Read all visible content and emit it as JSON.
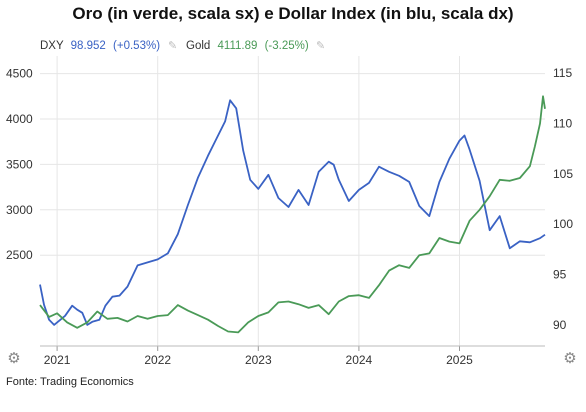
{
  "title": "Oro (in verde, scala sx) e Dollar Index (in blu, scala dx)",
  "source": "Fonte: Trading Economics",
  "icons": {
    "settings_left": "gear-icon",
    "settings_right": "gear-icon",
    "legend_edit": "pencil-icon"
  },
  "chart_data": {
    "type": "line",
    "title": "Oro (in verde, scala sx) e Dollar Index (in blu, scala dx)",
    "x_tick_labels": [
      "2021",
      "2022",
      "2023",
      "2024",
      "2025"
    ],
    "x_tick_values": [
      2021.0,
      2022.0,
      2023.0,
      2024.0,
      2025.0
    ],
    "xlim": [
      2020.83,
      2025.85
    ],
    "left_axis": {
      "ticks": [
        2500,
        3000,
        3500,
        4000,
        4500
      ],
      "range": [
        1500,
        4650
      ]
    },
    "right_axis": {
      "ticks": [
        90,
        95,
        100,
        105,
        110,
        115
      ],
      "range": [
        87.9,
        116.3
      ]
    },
    "grid": true,
    "legend_position": "top-left",
    "series": [
      {
        "name": "DXY",
        "legend_value": "98.952",
        "legend_change": "(+0.53%)",
        "axis": "right",
        "color": "#3a62c4",
        "x": [
          2020.83,
          2020.87,
          2020.92,
          2020.97,
          2021.02,
          2021.08,
          2021.15,
          2021.2,
          2021.25,
          2021.3,
          2021.35,
          2021.42,
          2021.48,
          2021.55,
          2021.62,
          2021.7,
          2021.8,
          2021.9,
          2022.0,
          2022.1,
          2022.2,
          2022.3,
          2022.4,
          2022.5,
          2022.58,
          2022.67,
          2022.72,
          2022.78,
          2022.85,
          2022.92,
          2023.0,
          2023.1,
          2023.2,
          2023.3,
          2023.4,
          2023.5,
          2023.6,
          2023.7,
          2023.75,
          2023.8,
          2023.9,
          2024.0,
          2024.1,
          2024.2,
          2024.3,
          2024.4,
          2024.5,
          2024.6,
          2024.7,
          2024.8,
          2024.9,
          2025.0,
          2025.05,
          2025.1,
          2025.2,
          2025.3,
          2025.4,
          2025.5,
          2025.6,
          2025.7,
          2025.8,
          2025.85
        ],
        "values": [
          94.0,
          92.0,
          90.5,
          90.0,
          90.4,
          90.9,
          91.9,
          91.5,
          91.2,
          90.0,
          90.3,
          90.5,
          91.9,
          92.8,
          92.9,
          93.8,
          95.9,
          96.2,
          96.5,
          97.1,
          99.0,
          101.9,
          104.6,
          106.8,
          108.4,
          110.2,
          112.3,
          111.5,
          107.3,
          104.4,
          103.5,
          104.9,
          102.6,
          101.7,
          103.4,
          101.9,
          105.2,
          106.2,
          105.9,
          104.4,
          102.3,
          103.4,
          104.1,
          105.7,
          105.2,
          104.8,
          104.2,
          101.8,
          100.8,
          104.2,
          106.5,
          108.3,
          108.8,
          107.4,
          104.3,
          99.4,
          100.8,
          97.6,
          98.3,
          98.2,
          98.6,
          98.95
        ]
      },
      {
        "name": "Gold",
        "legend_value": "4111.89",
        "legend_change": "(-3.25%)",
        "axis": "left",
        "color": "#4a9a57",
        "x": [
          2020.83,
          2020.92,
          2021.0,
          2021.1,
          2021.2,
          2021.3,
          2021.4,
          2021.5,
          2021.6,
          2021.7,
          2021.8,
          2021.9,
          2022.0,
          2022.1,
          2022.2,
          2022.3,
          2022.4,
          2022.5,
          2022.6,
          2022.7,
          2022.8,
          2022.9,
          2023.0,
          2023.1,
          2023.2,
          2023.3,
          2023.4,
          2023.5,
          2023.6,
          2023.7,
          2023.8,
          2023.9,
          2024.0,
          2024.1,
          2024.2,
          2024.3,
          2024.4,
          2024.5,
          2024.6,
          2024.7,
          2024.8,
          2024.9,
          2025.0,
          2025.1,
          2025.2,
          2025.3,
          2025.4,
          2025.5,
          2025.6,
          2025.7,
          2025.75,
          2025.8,
          2025.83,
          2025.85
        ],
        "values": [
          1950,
          1820,
          1860,
          1760,
          1700,
          1760,
          1880,
          1800,
          1810,
          1770,
          1830,
          1800,
          1830,
          1840,
          1950,
          1890,
          1840,
          1790,
          1720,
          1660,
          1650,
          1760,
          1830,
          1870,
          1980,
          1990,
          1960,
          1920,
          1950,
          1850,
          1990,
          2050,
          2060,
          2030,
          2170,
          2330,
          2390,
          2360,
          2500,
          2520,
          2690,
          2650,
          2630,
          2880,
          3000,
          3150,
          3330,
          3320,
          3350,
          3480,
          3700,
          3950,
          4250,
          4112
        ]
      }
    ]
  }
}
